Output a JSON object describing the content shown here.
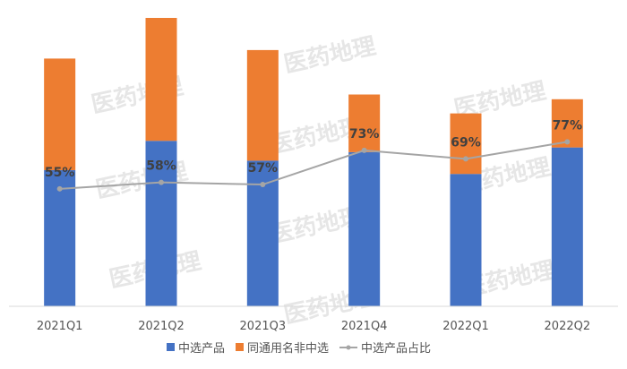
{
  "chart_data": {
    "type": "bar",
    "stacked": true,
    "categories": [
      "2021Q1",
      "2021Q2",
      "2021Q3",
      "2021Q4",
      "2022Q1",
      "2022Q2"
    ],
    "series": [
      {
        "name": "中选产品",
        "kind": "bar",
        "axis": "primary",
        "color": "#4472C4",
        "values": [
          144,
          175,
          154,
          163,
          140,
          168
        ]
      },
      {
        "name": "同通用名非中选",
        "kind": "bar",
        "axis": "primary",
        "color": "#ED7D31",
        "values": [
          118,
          130,
          117,
          61,
          64,
          51
        ]
      },
      {
        "name": "中选产品占比",
        "kind": "line",
        "axis": "secondary",
        "color": "#A5A5A5",
        "values": [
          55,
          58,
          57,
          73,
          69,
          77
        ],
        "labels": [
          "55%",
          "58%",
          "57%",
          "73%",
          "69%",
          "77%"
        ]
      }
    ],
    "ylim": [
      0,
      305
    ],
    "y2lim": [
      0,
      135
    ],
    "grid": false,
    "legend_position": "bottom"
  },
  "watermark": {
    "text": "医药地理"
  }
}
